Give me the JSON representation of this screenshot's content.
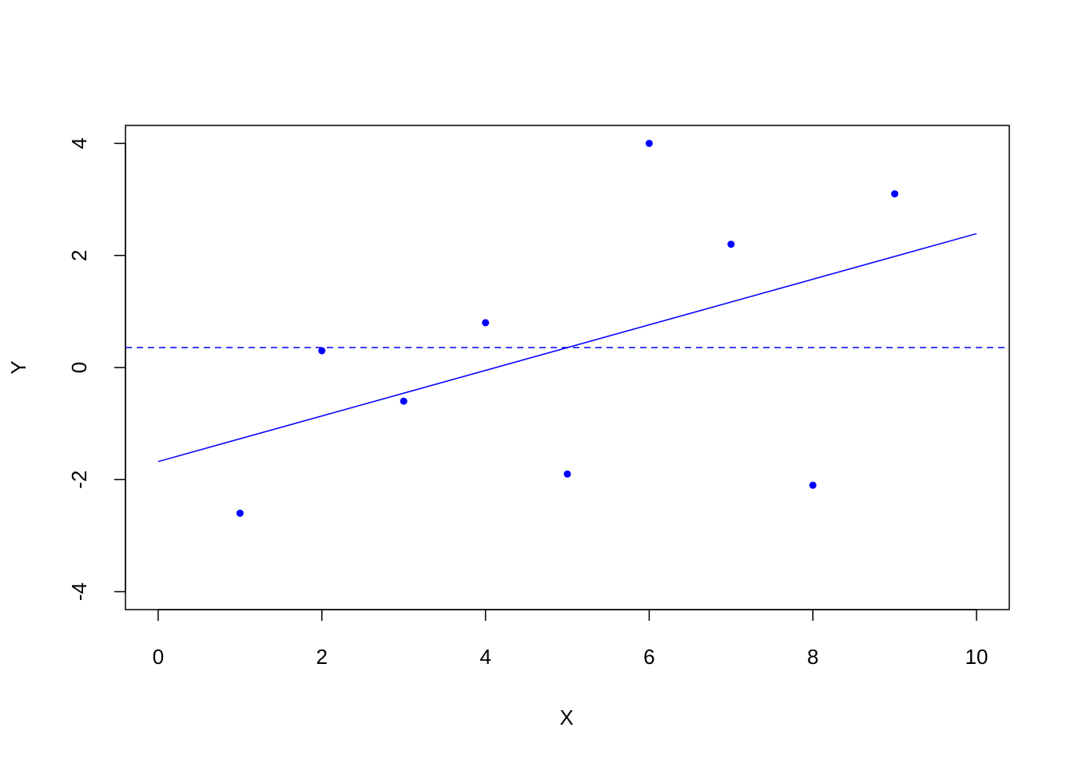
{
  "chart_data": {
    "type": "scatter",
    "x_label": "X",
    "y_label": "Y",
    "x": [
      1,
      2,
      3,
      4,
      5,
      6,
      7,
      8,
      9
    ],
    "y": [
      -2.6,
      0.3,
      -0.6,
      0.8,
      -1.9,
      4.0,
      2.2,
      -2.1,
      3.1
    ],
    "color": "#0000ff",
    "xlim": [
      -0.4,
      10.4
    ],
    "ylim": [
      -4.32,
      4.32
    ],
    "xticks": [
      0,
      2,
      4,
      6,
      8,
      10
    ],
    "yticks": [
      -4,
      -2,
      0,
      2,
      4
    ],
    "fit_line": {
      "x": [
        0,
        10
      ],
      "y": [
        -1.678,
        2.389
      ]
    },
    "mean_line": 0.356
  }
}
